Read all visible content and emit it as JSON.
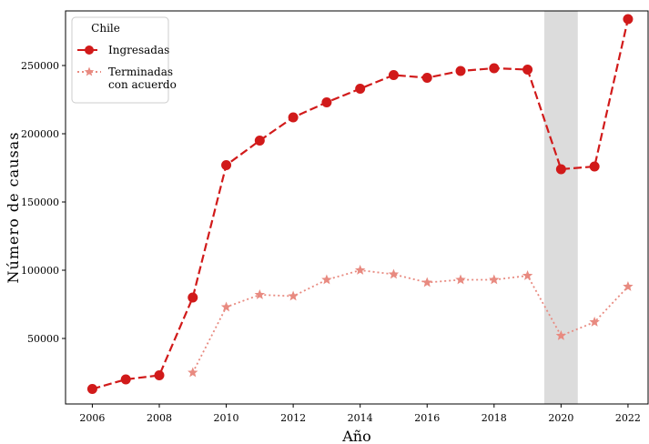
{
  "chart_data": {
    "type": "line",
    "title": "",
    "xlabel": "Año",
    "ylabel": "Número de causas",
    "xlim": [
      2005.2,
      2022.6
    ],
    "ylim": [
      2000,
      290000
    ],
    "x_ticks": [
      2006,
      2008,
      2010,
      2012,
      2014,
      2016,
      2018,
      2020,
      2022
    ],
    "y_ticks": [
      50000,
      100000,
      150000,
      200000,
      250000
    ],
    "shaded_region": {
      "x_from": 2019.5,
      "x_to": 2020.5,
      "color": "#dcdcdc"
    },
    "legend": {
      "title": "Chile",
      "placement": "top-left"
    },
    "grid": false,
    "series": [
      {
        "name": "Ingresadas",
        "color": "#d11a1a",
        "line_style": "dashed",
        "marker": "circle",
        "x": [
          2006,
          2007,
          2008,
          2009,
          2010,
          2011,
          2012,
          2013,
          2014,
          2015,
          2016,
          2017,
          2018,
          2019,
          2020,
          2021,
          2022
        ],
        "values": [
          13000,
          20000,
          23000,
          80000,
          177000,
          195000,
          212000,
          223000,
          233000,
          243000,
          241000,
          246000,
          248000,
          247000,
          174000,
          176000,
          284000
        ]
      },
      {
        "name": "Terminadas\ncon acuerdo",
        "color": "#e88a80",
        "line_style": "dotted",
        "marker": "star",
        "x": [
          2009,
          2010,
          2011,
          2012,
          2013,
          2014,
          2015,
          2016,
          2017,
          2018,
          2019,
          2020,
          2021,
          2022
        ],
        "values": [
          25000,
          73000,
          82000,
          81000,
          93000,
          100000,
          97000,
          91000,
          93000,
          93000,
          96000,
          52000,
          62000,
          88000
        ]
      }
    ]
  }
}
